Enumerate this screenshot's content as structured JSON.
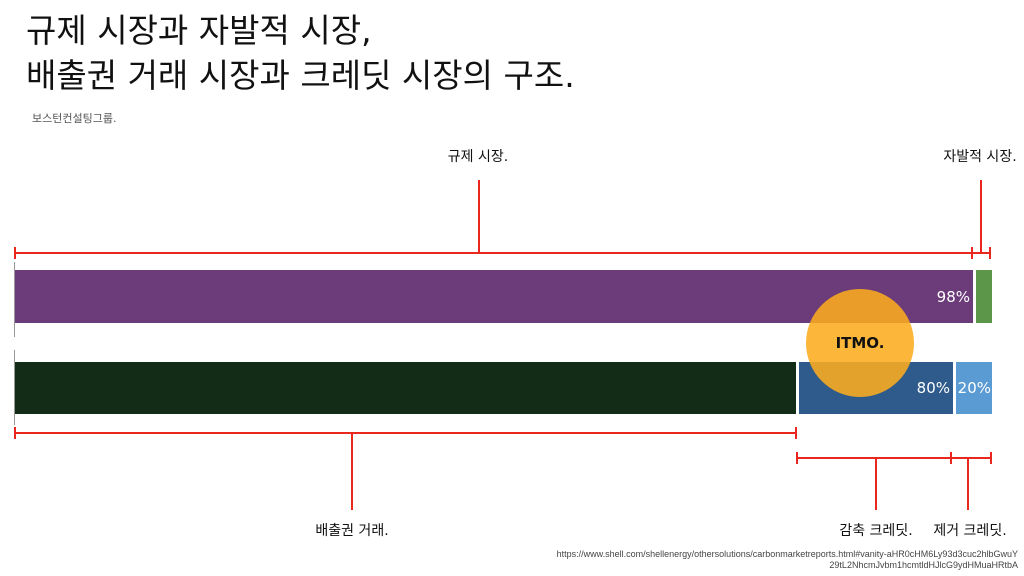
{
  "title": {
    "line1": "규제 시장과 자발적 시장,",
    "line2": "배출권 거래 시장과 크레딧 시장의 구조."
  },
  "source_org": "보스턴컨설팅그룹.",
  "labels": {
    "regulated": "규제 시장.",
    "voluntary": "자발적 시장.",
    "ets": "배출권 거래.",
    "reduction": "감축 크레딧.",
    "removal": "제거 크레딧."
  },
  "bars": {
    "top": {
      "regulated_pct": "98%",
      "regulated_color": "#6c3b7a",
      "voluntary_color": "#5c9648"
    },
    "bottom": {
      "ets_color": "#132c18",
      "reduction_pct": "80%",
      "reduction_color": "#2e5a8c",
      "removal_pct": "20%",
      "removal_color": "#5b9bd3"
    }
  },
  "overlay": {
    "label": "ITMO.",
    "color": "#fcac1e"
  },
  "bracket_color": "#e8281e",
  "source_url": "https://www.shell.com/shellenergy/othersolutions/carbonmarketreports.html#vanity-aHR0cHM6Ly93d3cuc2hlbGwuY29tL2NhcmJvbm1hcmtldHJlcG9ydHMuaHRtbA"
}
